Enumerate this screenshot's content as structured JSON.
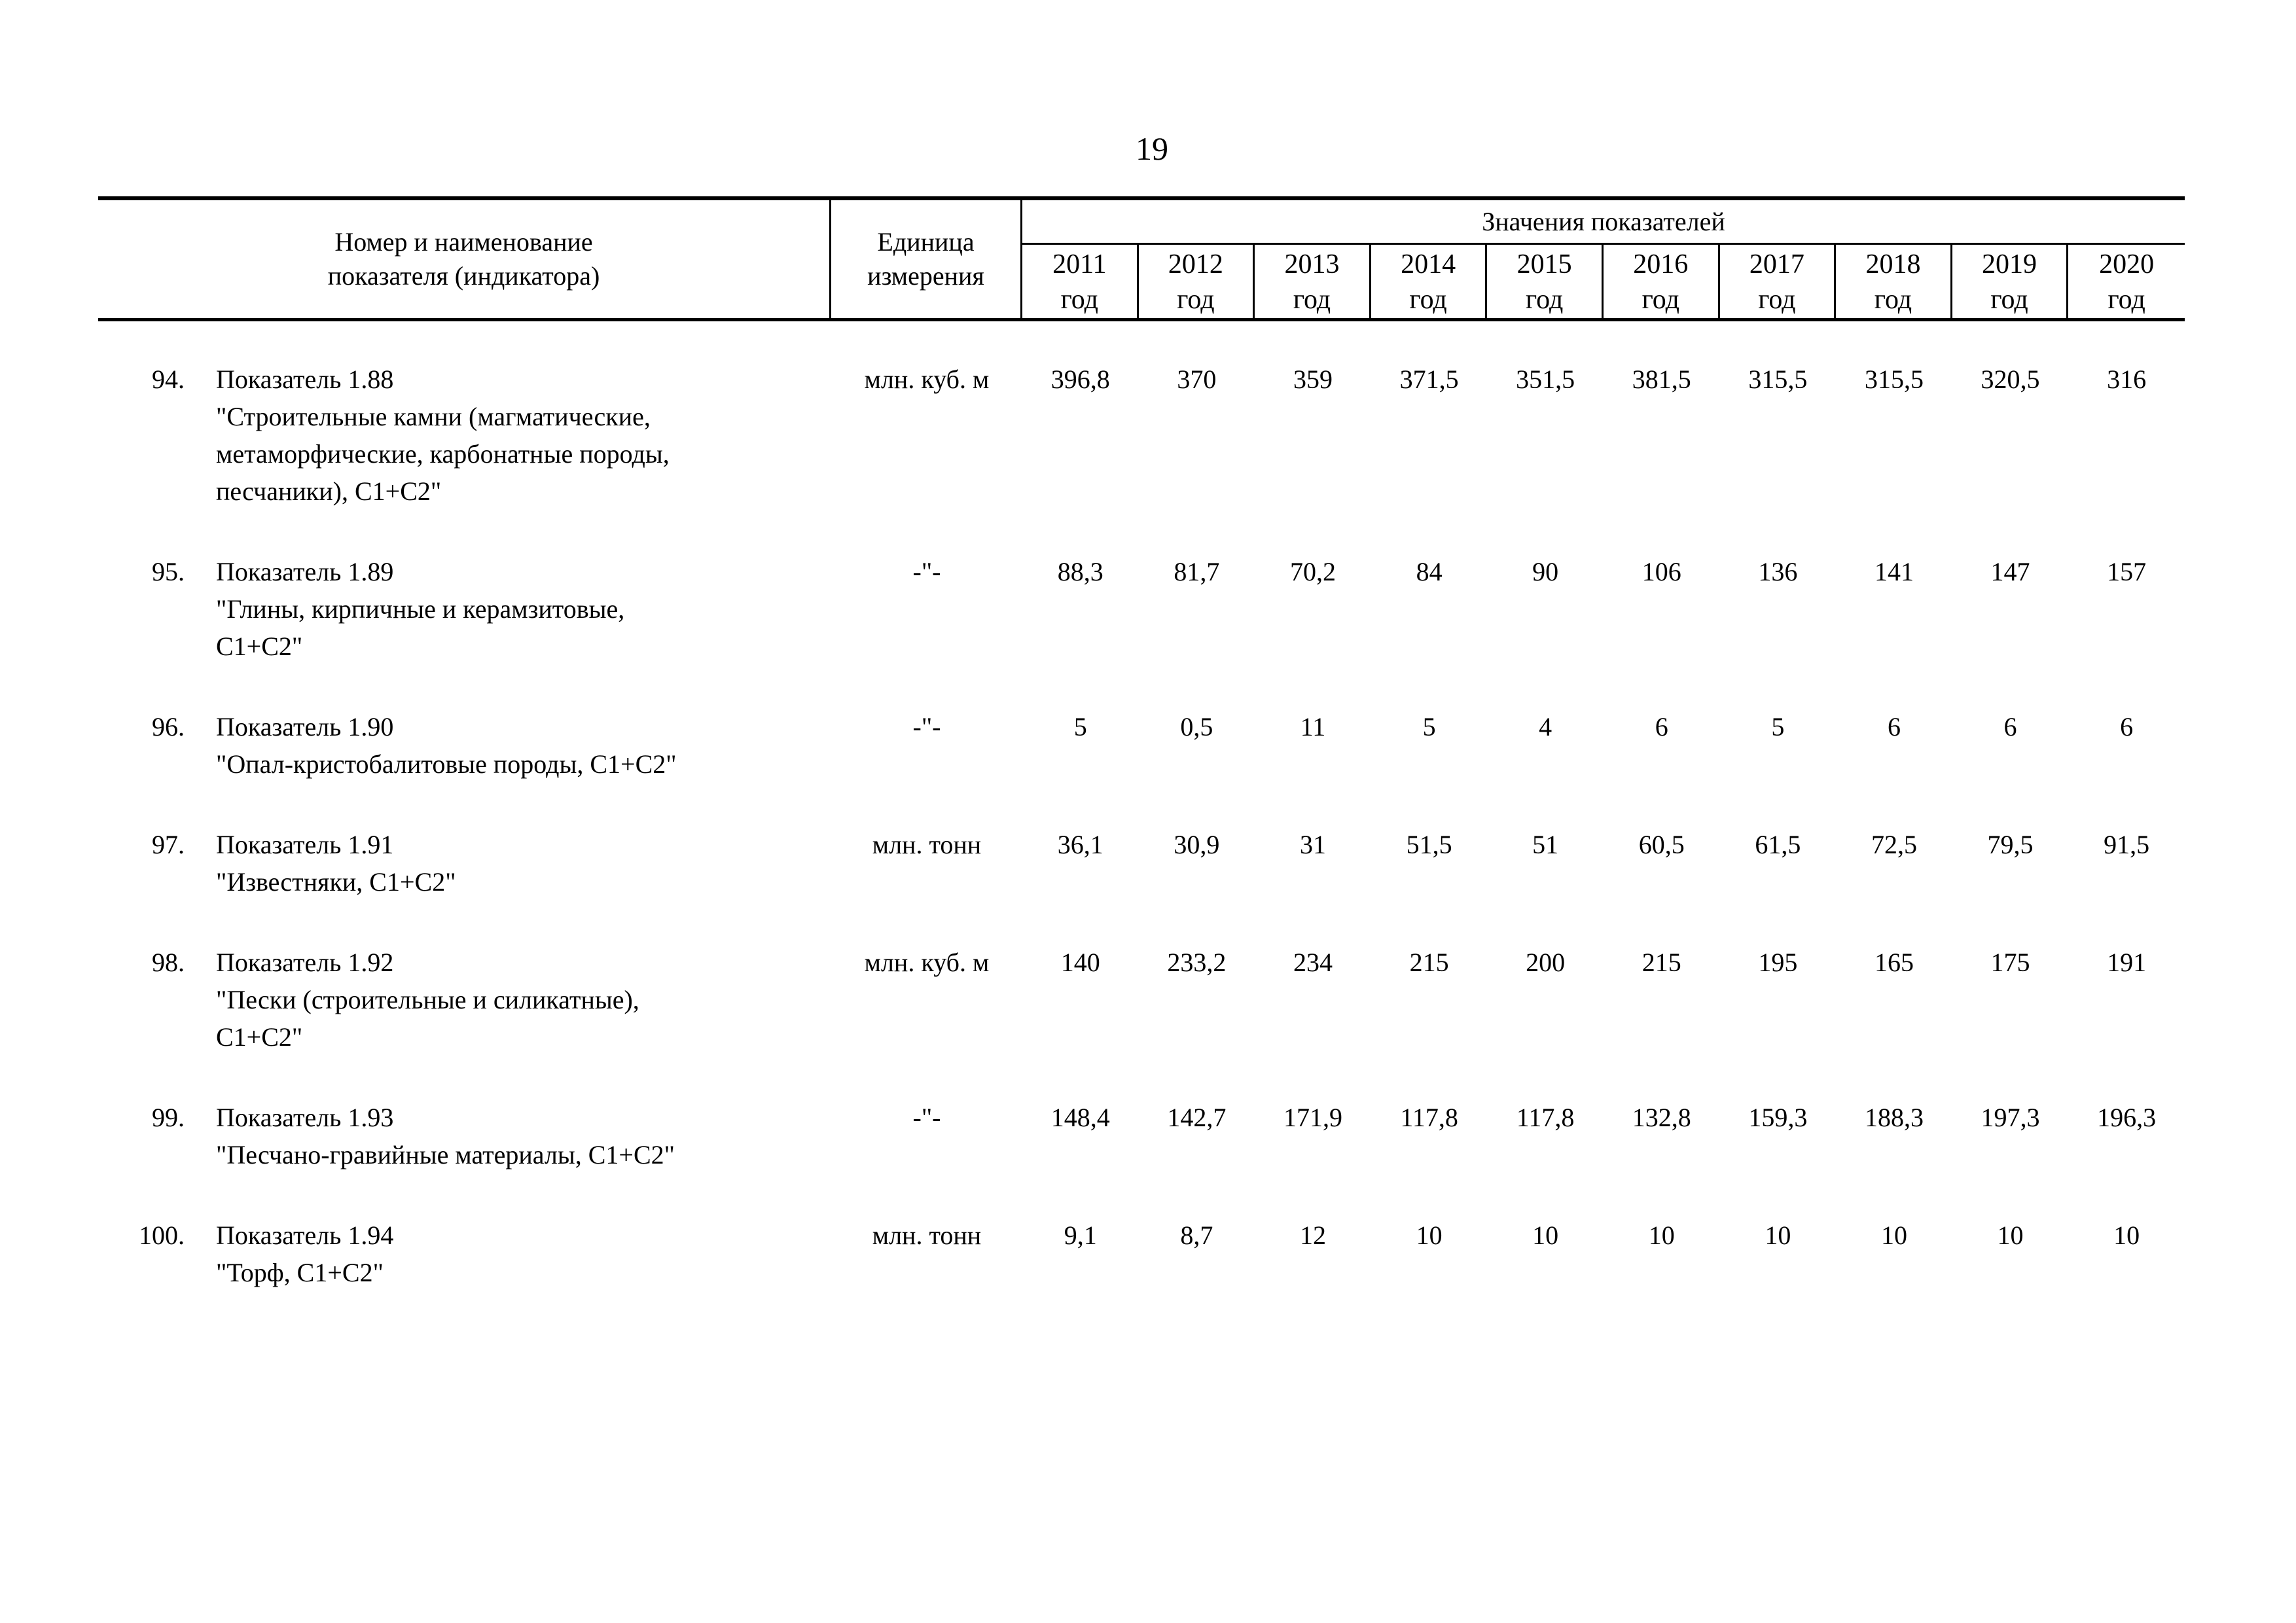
{
  "page": {
    "number": "19"
  },
  "table": {
    "header": {
      "col1": "Номер и наименование\nпоказателя (индикатора)",
      "col2": "Единица\nизмерения",
      "values_group": "Значения показателей",
      "year_word": "год",
      "years": [
        "2011",
        "2012",
        "2013",
        "2014",
        "2015",
        "2016",
        "2017",
        "2018",
        "2019",
        "2020"
      ]
    },
    "rows": [
      {
        "num": "94.",
        "name": "Показатель 1.88\n\"Строительные камни (магматические,\nметаморфические, карбонатные породы,\nпесчаники), С1+С2\"",
        "unit": "млн. куб. м",
        "values": [
          "396,8",
          "370",
          "359",
          "371,5",
          "351,5",
          "381,5",
          "315,5",
          "315,5",
          "320,5",
          "316"
        ]
      },
      {
        "num": "95.",
        "name": "Показатель 1.89\n\"Глины, кирпичные и керамзитовые,\nС1+С2\"",
        "unit": "-\"-",
        "values": [
          "88,3",
          "81,7",
          "70,2",
          "84",
          "90",
          "106",
          "136",
          "141",
          "147",
          "157"
        ]
      },
      {
        "num": "96.",
        "name": "Показатель 1.90\n\"Опал-кристобалитовые породы, С1+С2\"",
        "unit": "-\"-",
        "values": [
          "5",
          "0,5",
          "11",
          "5",
          "4",
          "6",
          "5",
          "6",
          "6",
          "6"
        ]
      },
      {
        "num": "97.",
        "name": "Показатель 1.91\n\"Известняки, С1+С2\"",
        "unit": "млн. тонн",
        "values": [
          "36,1",
          "30,9",
          "31",
          "51,5",
          "51",
          "60,5",
          "61,5",
          "72,5",
          "79,5",
          "91,5"
        ]
      },
      {
        "num": "98.",
        "name": "Показатель 1.92\n\"Пески (строительные и силикатные),\nС1+С2\"",
        "unit": "млн. куб. м",
        "values": [
          "140",
          "233,2",
          "234",
          "215",
          "200",
          "215",
          "195",
          "165",
          "175",
          "191"
        ]
      },
      {
        "num": "99.",
        "name": "Показатель 1.93\n\"Песчано-гравийные материалы, С1+С2\"",
        "unit": "-\"-",
        "values": [
          "148,4",
          "142,7",
          "171,9",
          "117,8",
          "117,8",
          "132,8",
          "159,3",
          "188,3",
          "197,3",
          "196,3"
        ]
      },
      {
        "num": "100.",
        "name": "Показатель 1.94\n\"Торф, С1+С2\"",
        "unit": "млн. тонн",
        "values": [
          "9,1",
          "8,7",
          "12",
          "10",
          "10",
          "10",
          "10",
          "10",
          "10",
          "10"
        ]
      }
    ]
  }
}
